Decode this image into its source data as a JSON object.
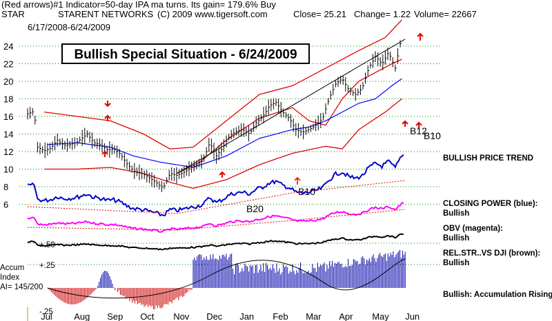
{
  "header": {
    "line1": "(Red arrows)#1 Indicator=50-day IPA ma turns. Its gain= 179.6% Buy",
    "ticker": "STAR",
    "company": "STARENT NETWORKS",
    "copyright": "(C) 2009 www.tigersoft.com",
    "close": "Close=  25.21",
    "change": "Change= 1.22",
    "volume": "Volume= 22667",
    "date_range": "6/17/2008-6/24/2009"
  },
  "title_box": "Bullish Special Situation - 6/24/2009",
  "colors": {
    "price": "#000000",
    "band_red": "#e00000",
    "ma_blue": "#0000ff",
    "closing_power": "#0000cc",
    "obv": "#ff00ff",
    "rel_str": "#000000",
    "accum_pos": "#0000aa",
    "accum_neg": "#cc0000",
    "grid": "#008000"
  },
  "side_labels": [
    "BULLISH PRICE TREND",
    "CLOSING POWER (blue):",
    "Bullish",
    "OBV (magenta):",
    "Bullish",
    "REL.STR..VS DJI (brown):",
    "Bullish",
    "Bullish: Accumulation Rising"
  ],
  "signals": [
    "B20",
    "B10",
    "B20",
    "B12"
  ],
  "accum_labels": [
    "Accum",
    "Index",
    "AI= 145/200"
  ],
  "chart_data": {
    "type": "line",
    "x_months": [
      "Jul",
      "Aug",
      "Sep",
      "Oct",
      "Nov",
      "Dec",
      "Jan",
      "Feb",
      "Mar",
      "Apr",
      "May",
      "Jun"
    ],
    "y_ticks": [
      6,
      8,
      10,
      12,
      14,
      16,
      18,
      20,
      22,
      24
    ],
    "ylim": [
      5,
      26
    ],
    "accum_ticks": [
      "+.50",
      "+.25",
      "-.25"
    ],
    "price_series": {
      "name": "Close",
      "x": [
        0,
        0.2,
        0.3,
        0.5,
        0.7,
        0.9,
        1.1,
        1.3,
        1.5,
        1.8,
        2.0,
        2.2,
        2.4,
        2.6,
        2.8,
        3.0,
        3.2,
        3.4,
        3.6,
        3.8,
        4.0,
        4.1,
        4.3,
        4.5,
        4.7,
        4.9,
        5.1,
        5.3,
        5.5,
        5.7,
        5.9,
        6.1,
        6.3,
        6.5,
        6.7,
        6.9,
        7.1,
        7.3,
        7.5,
        7.7,
        7.9,
        8.1,
        8.3,
        8.5,
        8.7,
        8.9,
        9.1,
        9.3,
        9.5,
        9.7,
        9.9,
        10.1,
        10.3,
        10.5,
        10.7,
        10.9,
        11.1,
        11.3
      ],
      "y": [
        16.3,
        16.6,
        12.5,
        12.1,
        12.4,
        13.3,
        12.7,
        12.8,
        13.1,
        14.0,
        13.0,
        12.8,
        12.2,
        12.3,
        11.7,
        10.6,
        9.8,
        9.6,
        9.2,
        8.7,
        8.1,
        7.9,
        9.5,
        9.3,
        9.6,
        10.1,
        10.5,
        11.0,
        13.0,
        11.5,
        12.5,
        13.8,
        14.3,
        14.5,
        14.0,
        15.3,
        16.0,
        17.2,
        17.6,
        16.5,
        15.8,
        14.5,
        14.2,
        14.5,
        15.0,
        15.7,
        18.0,
        19.7,
        20.3,
        19.0,
        18.5,
        19.2,
        21.5,
        22.8,
        22.0,
        23.3,
        21.5,
        25.2
      ]
    },
    "upper_band": {
      "x": [
        0.5,
        1.5,
        2.5,
        3.5,
        4.3,
        5.0,
        6.0,
        7.0,
        8.0,
        9.0,
        10.0,
        10.8,
        11.3
      ],
      "y": [
        16.5,
        16.0,
        15.5,
        14.0,
        12.3,
        12.5,
        15.5,
        18.5,
        19.5,
        21.5,
        23.5,
        25.0,
        27.0
      ]
    },
    "lower_band": {
      "x": [
        0.5,
        1.5,
        2.5,
        3.5,
        4.3,
        5.0,
        6.0,
        7.0,
        8.0,
        9.0,
        9.5,
        10.0,
        10.8,
        11.3
      ],
      "y": [
        10.0,
        10.0,
        10.2,
        9.5,
        8.5,
        7.8,
        8.8,
        10.5,
        11.8,
        12.6,
        12.3,
        14.5,
        16.5,
        18.0
      ]
    },
    "mid_band": {
      "x": [
        4.5,
        5.2,
        6.0,
        7.0,
        8.0,
        8.5,
        9.0,
        9.5,
        10.0,
        10.5,
        11.0,
        11.3
      ],
      "y": [
        9.5,
        10.8,
        13.3,
        15.8,
        17.0,
        15.5,
        15.0,
        18.0,
        20.0,
        21.0,
        22.0,
        22.5
      ]
    },
    "ma50": {
      "x": [
        0.6,
        1.5,
        2.5,
        3.2,
        4.0,
        5.0,
        6.0,
        7.0,
        8.0,
        8.5,
        9.0,
        9.5,
        10.0,
        10.5,
        11.0,
        11.3
      ],
      "y": [
        12.8,
        13.0,
        12.5,
        11.5,
        10.8,
        10.2,
        11.5,
        13.5,
        14.5,
        14.8,
        15.5,
        16.5,
        17.5,
        18.0,
        19.5,
        20.3
      ]
    },
    "trendline": {
      "x": [
        4.5,
        11.4
      ],
      "y": [
        9.5,
        24.8
      ]
    }
  }
}
